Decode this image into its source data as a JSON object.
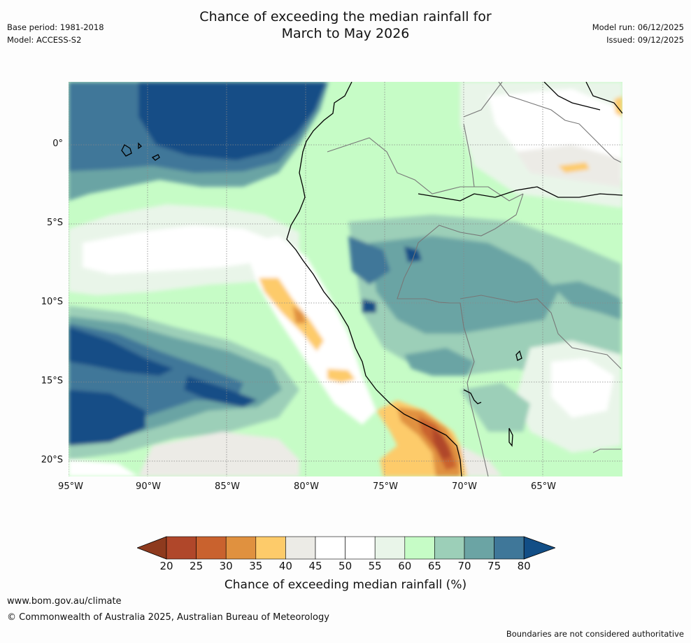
{
  "title_line1": "Chance of exceeding the median rainfall for",
  "title_line2": "March to May 2026",
  "base_period": "Base period: 1981-2018",
  "model": "Model: ACCESS-S2",
  "model_run": "Model run: 06/12/2025",
  "issued": "Issued: 09/12/2025",
  "lat_labels": [
    "0°",
    "5°S",
    "10°S",
    "15°S",
    "20°S"
  ],
  "lon_labels": [
    "95°W",
    "90°W",
    "85°W",
    "80°W",
    "75°W",
    "70°W",
    "65°W"
  ],
  "legend": {
    "title": "Chance of exceeding median rainfall (%)",
    "ticks": [
      "20",
      "25",
      "30",
      "35",
      "40",
      "45",
      "50",
      "55",
      "60",
      "65",
      "70",
      "75",
      "80"
    ],
    "colors": [
      "#8e3a1e",
      "#b0472a",
      "#c9622e",
      "#e0913f",
      "#fdcb6a",
      "#ecebe6",
      "#ffffff",
      "#ffffff",
      "#e9f5e9",
      "#c6fcc6",
      "#9ccfb8",
      "#6ba4a4",
      "#3f7799",
      "#124e86"
    ]
  },
  "footer": {
    "url": "www.bom.gov.au/climate",
    "copyright": "© Commonwealth of Australia 2025, Australian Bureau of Meteorology",
    "note": "Boundaries are not considered authoritative"
  }
}
